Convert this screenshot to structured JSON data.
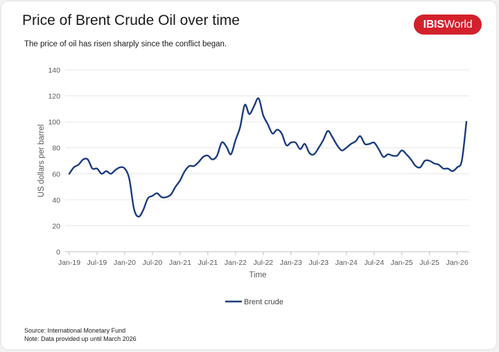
{
  "title": "Price of Brent Crude Oil over time",
  "subtitle": "The price of oil has risen sharply since the conflict began.",
  "logo": {
    "bold": "IBIS",
    "rest": "World",
    "color": "#d3212c"
  },
  "footer": {
    "source": "Source: International Monetary Fund",
    "note": "Note: Data provided up until March 2026"
  },
  "colors": {
    "line": "#1a3c7c",
    "grid": "#e6e6e6",
    "axis": "#bfbfbf",
    "text": "#595959"
  },
  "chart_data": {
    "type": "line",
    "xlabel": "Time",
    "ylabel": "US dollars per barrel",
    "ylim": [
      0,
      140
    ],
    "yticks": [
      0,
      20,
      40,
      60,
      80,
      100,
      120,
      140
    ],
    "xticks": [
      "Jan-19",
      "Jul-19",
      "Jan-20",
      "Jul-20",
      "Jan-21",
      "Jul-21",
      "Jan-22",
      "Jul-22",
      "Jan-23",
      "Jul-23",
      "Jan-24",
      "Jul-24",
      "Jan-25",
      "Jul-25",
      "Jan-26"
    ],
    "grid": true,
    "legend_position": "bottom",
    "series": [
      {
        "name": "Brent crude",
        "x": [
          "Jan-19",
          "Feb-19",
          "Mar-19",
          "Apr-19",
          "May-19",
          "Jun-19",
          "Jul-19",
          "Aug-19",
          "Sep-19",
          "Oct-19",
          "Nov-19",
          "Dec-19",
          "Jan-20",
          "Feb-20",
          "Mar-20",
          "Apr-20",
          "May-20",
          "Jun-20",
          "Jul-20",
          "Aug-20",
          "Sep-20",
          "Oct-20",
          "Nov-20",
          "Dec-20",
          "Jan-21",
          "Feb-21",
          "Mar-21",
          "Apr-21",
          "May-21",
          "Jun-21",
          "Jul-21",
          "Aug-21",
          "Sep-21",
          "Oct-21",
          "Nov-21",
          "Dec-21",
          "Jan-22",
          "Feb-22",
          "Mar-22",
          "Apr-22",
          "May-22",
          "Jun-22",
          "Jul-22",
          "Aug-22",
          "Sep-22",
          "Oct-22",
          "Nov-22",
          "Dec-22",
          "Jan-23",
          "Feb-23",
          "Mar-23",
          "Apr-23",
          "May-23",
          "Jun-23",
          "Jul-23",
          "Aug-23",
          "Sep-23",
          "Oct-23",
          "Nov-23",
          "Dec-23",
          "Jan-24",
          "Feb-24",
          "Mar-24",
          "Apr-24",
          "May-24",
          "Jun-24",
          "Jul-24",
          "Aug-24",
          "Sep-24",
          "Oct-24",
          "Nov-24",
          "Dec-24",
          "Jan-25",
          "Feb-25",
          "Mar-25",
          "Apr-25",
          "May-25",
          "Jun-25",
          "Jul-25",
          "Aug-25",
          "Sep-25",
          "Oct-25",
          "Nov-25",
          "Dec-25",
          "Jan-26",
          "Feb-26",
          "Mar-26"
        ],
        "values": [
          60,
          65,
          67,
          71,
          71,
          64,
          64,
          60,
          62,
          60,
          63,
          65,
          64,
          56,
          33,
          27,
          32,
          41,
          43,
          45,
          42,
          42,
          44,
          50,
          55,
          62,
          66,
          66,
          69,
          73,
          74,
          71,
          74,
          84,
          81,
          75,
          86,
          96,
          113,
          106,
          112,
          118,
          105,
          98,
          91,
          94,
          91,
          82,
          84,
          84,
          79,
          83,
          76,
          75,
          80,
          86,
          93,
          88,
          82,
          78,
          80,
          83,
          85,
          89,
          83,
          83,
          84,
          79,
          73,
          75,
          74,
          74,
          78,
          75,
          71,
          66,
          65,
          70,
          70,
          68,
          67,
          64,
          64,
          62,
          65,
          70,
          100
        ]
      }
    ]
  }
}
